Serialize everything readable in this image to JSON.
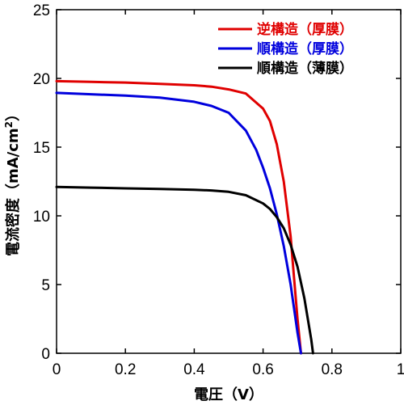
{
  "chart_data": {
    "type": "line",
    "xlabel": "電圧（V）",
    "ylabel": "電流密度（mA/cm",
    "ylabel_sup": "2",
    "ylabel_close": "）",
    "xlim": [
      0,
      1
    ],
    "ylim": [
      0,
      25
    ],
    "xticks": [
      0,
      0.2,
      0.4,
      0.6,
      0.8,
      1
    ],
    "xtick_labels": [
      "0",
      "0.2",
      "0.4",
      "0.6",
      "0.8",
      "1"
    ],
    "yticks": [
      0,
      5,
      10,
      15,
      20,
      25
    ],
    "ytick_labels": [
      "0",
      "5",
      "10",
      "15",
      "20",
      "25"
    ],
    "grid": false,
    "legend_position": "top-right",
    "series": [
      {
        "name": "逆構造（厚膜）",
        "color": "#e00000",
        "x": [
          0,
          0.1,
          0.2,
          0.3,
          0.4,
          0.45,
          0.5,
          0.55,
          0.6,
          0.62,
          0.64,
          0.66,
          0.68,
          0.69,
          0.7,
          0.71
        ],
        "y": [
          19.8,
          19.75,
          19.7,
          19.6,
          19.5,
          19.4,
          19.2,
          18.9,
          17.8,
          16.9,
          15.2,
          12.5,
          8.5,
          5.5,
          2.5,
          0
        ]
      },
      {
        "name": "順構造（厚膜）",
        "color": "#0000dd",
        "x": [
          0,
          0.1,
          0.2,
          0.3,
          0.4,
          0.45,
          0.5,
          0.55,
          0.58,
          0.6,
          0.62,
          0.64,
          0.66,
          0.68,
          0.7,
          0.71
        ],
        "y": [
          18.95,
          18.85,
          18.75,
          18.6,
          18.3,
          18.0,
          17.5,
          16.2,
          14.8,
          13.5,
          12.0,
          10.1,
          7.8,
          5.0,
          1.5,
          0
        ]
      },
      {
        "name": "順構造（薄膜）",
        "color": "#000000",
        "x": [
          0,
          0.1,
          0.2,
          0.3,
          0.4,
          0.45,
          0.5,
          0.55,
          0.6,
          0.62,
          0.64,
          0.66,
          0.68,
          0.7,
          0.72,
          0.74,
          0.745
        ],
        "y": [
          12.1,
          12.05,
          12.0,
          11.95,
          11.9,
          11.85,
          11.75,
          11.5,
          10.9,
          10.5,
          9.9,
          9.1,
          7.9,
          6.3,
          4.0,
          1.0,
          0
        ]
      }
    ]
  }
}
